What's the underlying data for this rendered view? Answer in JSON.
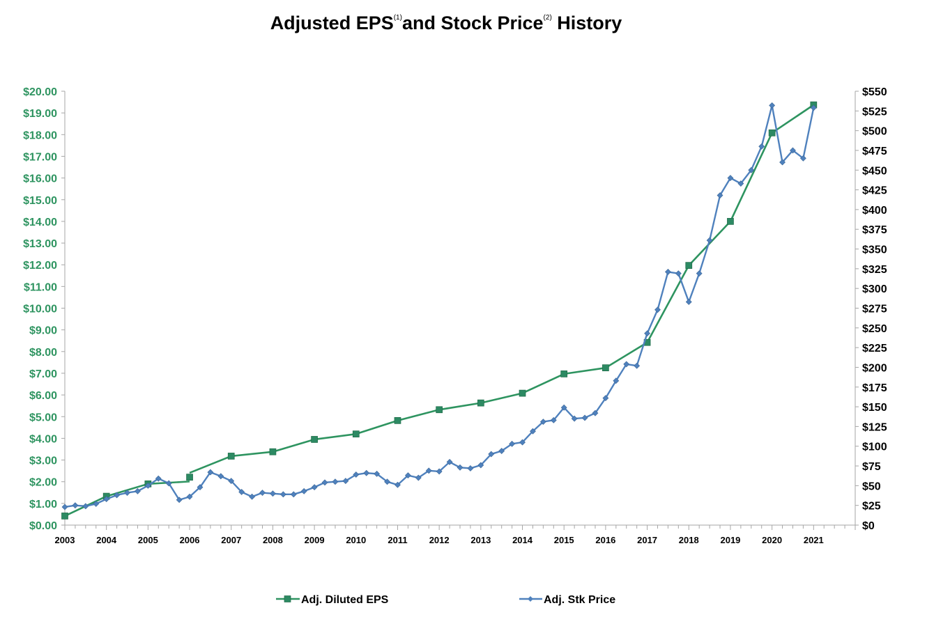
{
  "title": {
    "part1": "Adjusted EPS",
    "sup1": "(1)",
    "part2": "and Stock Price",
    "sup2": "(2)",
    "part3": " History"
  },
  "colors": {
    "eps": "#2e9460",
    "eps_marker": "#2d8a63",
    "price": "#4f81bd",
    "left_axis_text": "#2e9460",
    "grid_tick": "#a6a6a6"
  },
  "chart_data": {
    "type": "line",
    "x_range": [
      2003,
      2022
    ],
    "x_ticks": [
      "2003",
      "2004",
      "2005",
      "2006",
      "2007",
      "2008",
      "2009",
      "2010",
      "2011",
      "2012",
      "2013",
      "2014",
      "2015",
      "2016",
      "2017",
      "2018",
      "2019",
      "2020",
      "2021"
    ],
    "y_left": {
      "range": [
        0,
        20
      ],
      "ticks": [
        "$0.00",
        "$1.00",
        "$2.00",
        "$3.00",
        "$4.00",
        "$5.00",
        "$6.00",
        "$7.00",
        "$8.00",
        "$9.00",
        "$10.00",
        "$11.00",
        "$12.00",
        "$13.00",
        "$14.00",
        "$15.00",
        "$16.00",
        "$17.00",
        "$18.00",
        "$19.00",
        "$20.00"
      ]
    },
    "y_right": {
      "range": [
        0,
        550
      ],
      "ticks": [
        "$0",
        "$25",
        "$50",
        "$75",
        "$100",
        "$125",
        "$150",
        "$175",
        "$200",
        "$225",
        "$250",
        "$275",
        "$300",
        "$325",
        "$350",
        "$375",
        "$400",
        "$425",
        "$450",
        "$475",
        "$500",
        "$525",
        "$550"
      ]
    },
    "series": [
      {
        "name": "Adj. Diluted EPS",
        "axis": "left",
        "marker": "square",
        "points": [
          {
            "x": 2003,
            "y": 0.42
          },
          {
            "x": 2004,
            "y": 1.33
          },
          {
            "x": 2005,
            "y": 1.9
          },
          {
            "x": 2006,
            "y": 2.21
          },
          {
            "x": 2007,
            "y": 3.18
          },
          {
            "x": 2008,
            "y": 3.38
          },
          {
            "x": 2009,
            "y": 3.95
          },
          {
            "x": 2010,
            "y": 4.2
          },
          {
            "x": 2011,
            "y": 4.82
          },
          {
            "x": 2012,
            "y": 5.32
          },
          {
            "x": 2013,
            "y": 5.63
          },
          {
            "x": 2014,
            "y": 6.08
          },
          {
            "x": 2015,
            "y": 6.97
          },
          {
            "x": 2016,
            "y": 7.25
          },
          {
            "x": 2017,
            "y": 8.42
          },
          {
            "x": 2018,
            "y": 11.97
          },
          {
            "x": 2019,
            "y": 14.0
          },
          {
            "x": 2020,
            "y": 18.08
          },
          {
            "x": 2021,
            "y": 19.37
          }
        ],
        "line_breaks_at": [
          2006
        ]
      },
      {
        "name": "Adj. Stk Price",
        "axis": "right",
        "marker": "diamond",
        "points": [
          {
            "x": 2003.0,
            "y": 23
          },
          {
            "x": 2003.25,
            "y": 25
          },
          {
            "x": 2003.5,
            "y": 24
          },
          {
            "x": 2003.75,
            "y": 27
          },
          {
            "x": 2004.0,
            "y": 33
          },
          {
            "x": 2004.25,
            "y": 38
          },
          {
            "x": 2004.5,
            "y": 41
          },
          {
            "x": 2004.75,
            "y": 43
          },
          {
            "x": 2005.0,
            "y": 50
          },
          {
            "x": 2005.25,
            "y": 59
          },
          {
            "x": 2005.5,
            "y": 53
          },
          {
            "x": 2005.75,
            "y": 32
          },
          {
            "x": 2006.0,
            "y": 36
          },
          {
            "x": 2006.25,
            "y": 48
          },
          {
            "x": 2006.5,
            "y": 67
          },
          {
            "x": 2006.75,
            "y": 62
          },
          {
            "x": 2007.0,
            "y": 56
          },
          {
            "x": 2007.25,
            "y": 42
          },
          {
            "x": 2007.5,
            "y": 36
          },
          {
            "x": 2007.75,
            "y": 41
          },
          {
            "x": 2008.0,
            "y": 40
          },
          {
            "x": 2008.25,
            "y": 39
          },
          {
            "x": 2008.5,
            "y": 39
          },
          {
            "x": 2008.75,
            "y": 43
          },
          {
            "x": 2009.0,
            "y": 48
          },
          {
            "x": 2009.25,
            "y": 54
          },
          {
            "x": 2009.5,
            "y": 55
          },
          {
            "x": 2009.75,
            "y": 56
          },
          {
            "x": 2010.0,
            "y": 64
          },
          {
            "x": 2010.25,
            "y": 66
          },
          {
            "x": 2010.5,
            "y": 65
          },
          {
            "x": 2010.75,
            "y": 55
          },
          {
            "x": 2011.0,
            "y": 51
          },
          {
            "x": 2011.25,
            "y": 63
          },
          {
            "x": 2011.5,
            "y": 60
          },
          {
            "x": 2011.75,
            "y": 69
          },
          {
            "x": 2012.0,
            "y": 68
          },
          {
            "x": 2012.25,
            "y": 80
          },
          {
            "x": 2012.5,
            "y": 73
          },
          {
            "x": 2012.75,
            "y": 72
          },
          {
            "x": 2013.0,
            "y": 76
          },
          {
            "x": 2013.25,
            "y": 90
          },
          {
            "x": 2013.5,
            "y": 94
          },
          {
            "x": 2013.75,
            "y": 103
          },
          {
            "x": 2014.0,
            "y": 105
          },
          {
            "x": 2014.25,
            "y": 119
          },
          {
            "x": 2014.5,
            "y": 131
          },
          {
            "x": 2014.75,
            "y": 133
          },
          {
            "x": 2015.0,
            "y": 149
          },
          {
            "x": 2015.25,
            "y": 135
          },
          {
            "x": 2015.5,
            "y": 136
          },
          {
            "x": 2015.75,
            "y": 142
          },
          {
            "x": 2016.0,
            "y": 161
          },
          {
            "x": 2016.25,
            "y": 183
          },
          {
            "x": 2016.5,
            "y": 204
          },
          {
            "x": 2016.75,
            "y": 202
          },
          {
            "x": 2017.0,
            "y": 243
          },
          {
            "x": 2017.25,
            "y": 273
          },
          {
            "x": 2017.5,
            "y": 321
          },
          {
            "x": 2017.75,
            "y": 319
          },
          {
            "x": 2018.0,
            "y": 283
          },
          {
            "x": 2018.25,
            "y": 319
          },
          {
            "x": 2018.5,
            "y": 361
          },
          {
            "x": 2018.75,
            "y": 418
          },
          {
            "x": 2019.0,
            "y": 440
          },
          {
            "x": 2019.25,
            "y": 433
          },
          {
            "x": 2019.5,
            "y": 450
          },
          {
            "x": 2019.75,
            "y": 480
          },
          {
            "x": 2020.0,
            "y": 532
          },
          {
            "x": 2020.25,
            "y": 460
          },
          {
            "x": 2020.5,
            "y": 475
          },
          {
            "x": 2020.75,
            "y": 465
          },
          {
            "x": 2021.0,
            "y": 529
          }
        ]
      }
    ],
    "legend": {
      "position": "bottom",
      "items": [
        "Adj. Diluted EPS",
        "Adj. Stk Price"
      ]
    },
    "grid": false
  }
}
